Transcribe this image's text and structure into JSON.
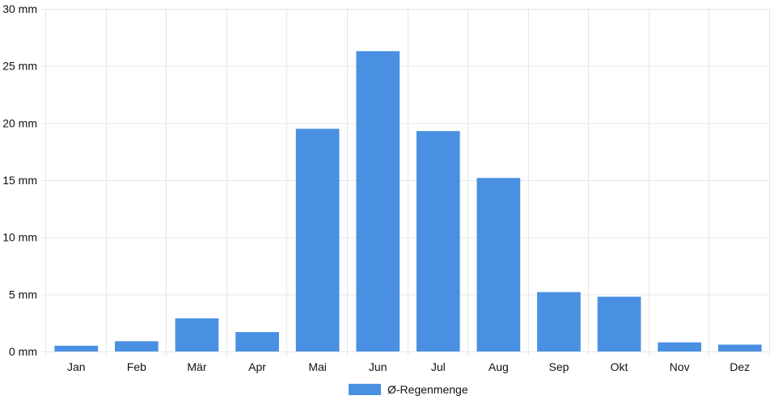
{
  "chart_data": {
    "type": "bar",
    "categories": [
      "Jan",
      "Feb",
      "Mär",
      "Apr",
      "Mai",
      "Jun",
      "Jul",
      "Aug",
      "Sep",
      "Okt",
      "Nov",
      "Dez"
    ],
    "series": [
      {
        "name": "Ø-Regenmenge",
        "values": [
          0.5,
          0.9,
          2.9,
          1.7,
          19.5,
          26.3,
          19.3,
          15.2,
          5.2,
          4.8,
          0.8,
          0.6
        ],
        "color": "#4a90e2"
      }
    ],
    "ylim": [
      0,
      30
    ],
    "yticks": [
      {
        "value": 0,
        "label": "0 mm"
      },
      {
        "value": 5,
        "label": "5 mm"
      },
      {
        "value": 10,
        "label": "10 mm"
      },
      {
        "value": 15,
        "label": "15 mm"
      },
      {
        "value": 20,
        "label": "20 mm"
      },
      {
        "value": 25,
        "label": "25 mm"
      },
      {
        "value": 30,
        "label": "30 mm"
      }
    ],
    "grid": true,
    "legend_position": "bottom-center",
    "grid_color": "#e6e6e6"
  }
}
